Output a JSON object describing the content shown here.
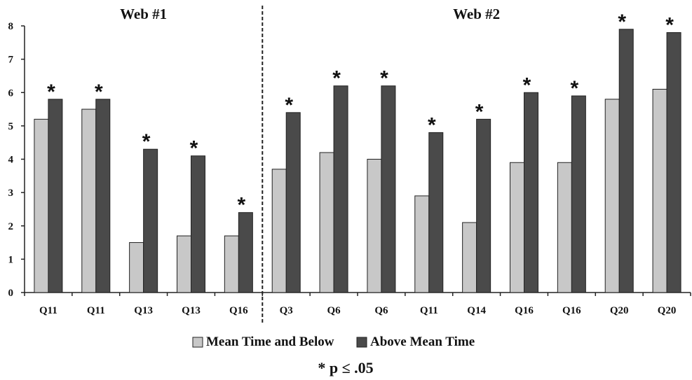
{
  "chart_data": {
    "type": "bar",
    "groups": [
      {
        "title": "Web #1",
        "categories": [
          "Q11",
          "Q11",
          "Q13",
          "Q13",
          "Q16"
        ]
      },
      {
        "title": "Web #2",
        "categories": [
          "Q3",
          "Q6",
          "Q6",
          "Q11",
          "Q14",
          "Q16",
          "Q16",
          "Q20",
          "Q20"
        ]
      }
    ],
    "categories": [
      "Q11",
      "Q11",
      "Q13",
      "Q13",
      "Q16",
      "Q3",
      "Q6",
      "Q6",
      "Q11",
      "Q14",
      "Q16",
      "Q16",
      "Q20",
      "Q20"
    ],
    "series": [
      {
        "name": "Mean Time and Below",
        "color": "#c8c8c8",
        "values": [
          5.2,
          5.5,
          1.5,
          1.7,
          1.7,
          3.7,
          4.2,
          4.0,
          2.9,
          2.1,
          3.9,
          3.9,
          5.8,
          6.1
        ]
      },
      {
        "name": "Above Mean Time",
        "color": "#4a4a4a",
        "values": [
          5.8,
          5.8,
          4.3,
          4.1,
          2.4,
          5.4,
          6.2,
          6.2,
          4.8,
          5.2,
          6.0,
          5.9,
          7.9,
          7.8
        ]
      }
    ],
    "significance_marker": "*",
    "significant": [
      true,
      true,
      true,
      true,
      true,
      true,
      true,
      true,
      true,
      true,
      true,
      true,
      true,
      true
    ],
    "ylim": [
      0,
      8
    ],
    "yticks": [
      0,
      1,
      2,
      3,
      4,
      5,
      6,
      7,
      8
    ],
    "grid": false,
    "legend_position": "bottom-center",
    "footnote": "* p ≤ .05",
    "divider": "dashed vertical line between Web #1 and Web #2"
  }
}
